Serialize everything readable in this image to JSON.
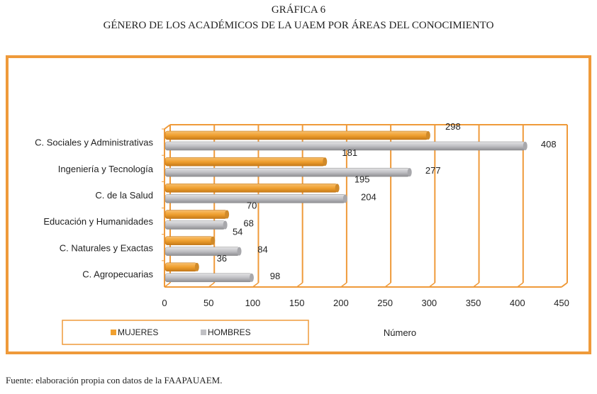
{
  "header": {
    "title": "GRÁFICA 6",
    "subtitle": "GÉNERO DE LOS ACADÉMICOS DE LA UAEM POR ÁREAS DEL CONOCIMIENTO"
  },
  "footer": "Fuente: elaboración propia con datos de la FAAPAUAEM.",
  "colors": {
    "mujeres": "#f0a030",
    "hombres": "#c0c0c4",
    "frame": "#ef9a3a"
  },
  "chart_data": {
    "type": "bar",
    "orientation": "horizontal",
    "categories": [
      "C. Sociales y Administrativas",
      "Ingeniería y Tecnología",
      "C. de la Salud",
      "Educación y Humanidades",
      "C. Naturales y Exactas",
      "C. Agropecuarias"
    ],
    "series": [
      {
        "name": "MUJERES",
        "values": [
          298,
          181,
          195,
          70,
          54,
          36
        ]
      },
      {
        "name": "HOMBRES",
        "values": [
          408,
          277,
          204,
          68,
          84,
          98
        ]
      }
    ],
    "xlabel": "Número",
    "xlim": [
      0,
      450
    ],
    "xticks": [
      "0",
      "50",
      "100",
      "150",
      "200",
      "250",
      "300",
      "350",
      "400",
      "450"
    ],
    "grid": true,
    "legend": "bottom-left"
  }
}
